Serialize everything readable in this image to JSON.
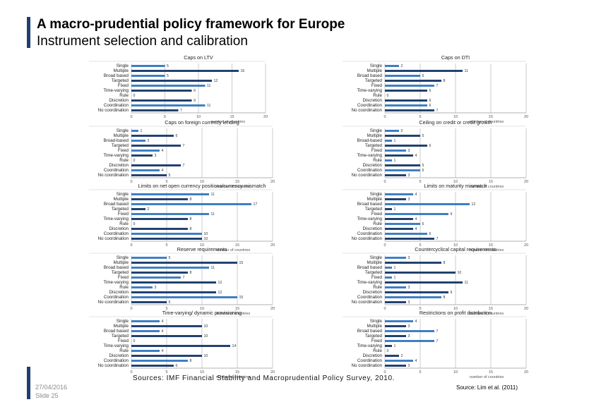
{
  "header": {
    "title": "A macro-prudential policy framework for Europe",
    "subtitle": "Instrument selection and calibration"
  },
  "footer": {
    "date": "27/04/2016",
    "slide": "Slide 25",
    "reference": "Source: Lim et al. (2011)",
    "sources": "Sources: IMF Financial Stability and Macroprudential Policy Survey, 2010."
  },
  "colors": {
    "bar": "#3b7dc4",
    "barDark": "#1f3f6e",
    "grid": "#9a9a9a"
  },
  "chart_data": [
    {
      "type": "bar",
      "orientation": "horizontal",
      "title": "Caps on LTV",
      "categories": [
        "Single",
        "Multiple",
        "Broad based",
        "Targeted",
        "Fixed",
        "Time-varying",
        "Rule",
        "Discretion",
        "Coordination",
        "No coordination"
      ],
      "values": [
        5,
        16,
        5,
        12,
        11,
        9,
        0,
        9,
        11,
        7
      ],
      "xlabel": "number of countries",
      "xticks": [
        0,
        5,
        10,
        15,
        20
      ],
      "xlim": [
        0,
        20
      ]
    },
    {
      "type": "bar",
      "orientation": "horizontal",
      "title": "Caps on DTI",
      "categories": [
        "Single",
        "Multiple",
        "Broad based",
        "Targeted",
        "Fixed",
        "Time-varying",
        "Rule",
        "Discretion",
        "Coordination",
        "No coordination"
      ],
      "values": [
        2,
        11,
        5,
        8,
        7,
        6,
        0,
        6,
        6,
        7
      ],
      "xlabel": "number of countries",
      "xticks": [
        0,
        5,
        10,
        15,
        20
      ],
      "xlim": [
        0,
        20
      ]
    },
    {
      "type": "bar",
      "orientation": "horizontal",
      "title": "Caps on foreign currency lending",
      "categories": [
        "Single",
        "Multiple",
        "Broad-based",
        "Targeted",
        "Fixed",
        "Time-varying",
        "Rule",
        "Discretion",
        "Coordination",
        "No coordination"
      ],
      "values": [
        1,
        6,
        2,
        7,
        4,
        3,
        0,
        7,
        4,
        5
      ],
      "xlabel": "number of countries",
      "xticks": [
        0,
        5,
        10,
        15,
        20
      ],
      "xlim": [
        0,
        20
      ]
    },
    {
      "type": "bar",
      "orientation": "horizontal",
      "title": "Ceiling on credit or credit growth",
      "categories": [
        "Single",
        "Multiple",
        "Broad-based",
        "Targeted",
        "Fixed",
        "Time-varying",
        "Rule",
        "Discretion",
        "Coordination",
        "No coordination"
      ],
      "values": [
        2,
        5,
        1,
        6,
        3,
        4,
        1,
        5,
        5,
        3
      ],
      "xlabel": "number of countries",
      "xticks": [
        0,
        5,
        10,
        15,
        20
      ],
      "xlim": [
        0,
        20
      ]
    },
    {
      "type": "bar",
      "orientation": "horizontal",
      "title": "Limits on net open currency positions/currency mismatch",
      "categories": [
        "Single",
        "Multiple",
        "Broad based",
        "Targeted",
        "Fixed",
        "Time-varying",
        "Rule",
        "Discretion",
        "Coordination",
        "No coordination"
      ],
      "values": [
        11,
        8,
        17,
        2,
        11,
        8,
        0,
        8,
        10,
        10
      ],
      "xlabel": "number of countries",
      "xticks": [
        0,
        5,
        10,
        15,
        20
      ],
      "xlim": [
        0,
        20
      ]
    },
    {
      "type": "bar",
      "orientation": "horizontal",
      "title": "Limits on maturity mismatch",
      "categories": [
        "Single",
        "Multiple",
        "Broad based",
        "Targeted",
        "Fixed",
        "Time-varying",
        "Rule",
        "Discretion",
        "Coordination",
        "No coordination"
      ],
      "values": [
        4,
        3,
        12,
        1,
        9,
        4,
        5,
        4,
        6,
        7
      ],
      "xlabel": "number of countries",
      "xticks": [
        0,
        5,
        10,
        15,
        20
      ],
      "xlim": [
        0,
        20
      ]
    },
    {
      "type": "bar",
      "orientation": "horizontal",
      "title": "Reserve requirements",
      "categories": [
        "Single",
        "Multiple",
        "Broad based",
        "Targeted",
        "Fixed",
        "Time-varying",
        "Rule",
        "Discretion",
        "Coordination",
        "No coordination"
      ],
      "values": [
        5,
        15,
        11,
        8,
        7,
        12,
        3,
        12,
        15,
        5
      ],
      "xlabel": "number of countries",
      "xticks": [
        0,
        5,
        10,
        15,
        20
      ],
      "xlim": [
        0,
        20
      ]
    },
    {
      "type": "bar",
      "orientation": "horizontal",
      "title": "Countercyclical capital requirements",
      "categories": [
        "Single",
        "Multiple",
        "Broad based",
        "Targeted",
        "Fixed",
        "Time-varying",
        "Rule",
        "Discretion",
        "Coordination",
        "No coordination"
      ],
      "values": [
        3,
        8,
        1,
        10,
        1,
        11,
        3,
        9,
        8,
        3
      ],
      "xlabel": "number of countries",
      "xticks": [
        0,
        5,
        10,
        15,
        20
      ],
      "xlim": [
        0,
        20
      ]
    },
    {
      "type": "bar",
      "orientation": "horizontal",
      "title": "Time-varying/ dynamic provisioning",
      "categories": [
        "Single",
        "Multiple",
        "Broad based",
        "Targeted",
        "Fixed",
        "Time-varying",
        "Rule",
        "Discretion",
        "Coordination",
        "No coordination"
      ],
      "values": [
        4,
        10,
        4,
        10,
        0,
        14,
        4,
        10,
        8,
        6
      ],
      "xlabel": "number of countries",
      "xticks": [
        0,
        5,
        10,
        15,
        20
      ],
      "xlim": [
        0,
        20
      ]
    },
    {
      "type": "bar",
      "orientation": "horizontal",
      "title": "Restrictions on profit distribution",
      "categories": [
        "Single",
        "Multiple",
        "Broad based",
        "Targeted",
        "Fixed",
        "Time-varying",
        "Rule",
        "Discretion",
        "Coordination",
        "No coordination"
      ],
      "values": [
        4,
        3,
        7,
        3,
        7,
        1,
        0,
        2,
        4,
        3
      ],
      "xlabel": "number of countries",
      "xticks": [
        0,
        5,
        10,
        15,
        20
      ],
      "xlim": [
        0,
        20
      ]
    }
  ]
}
